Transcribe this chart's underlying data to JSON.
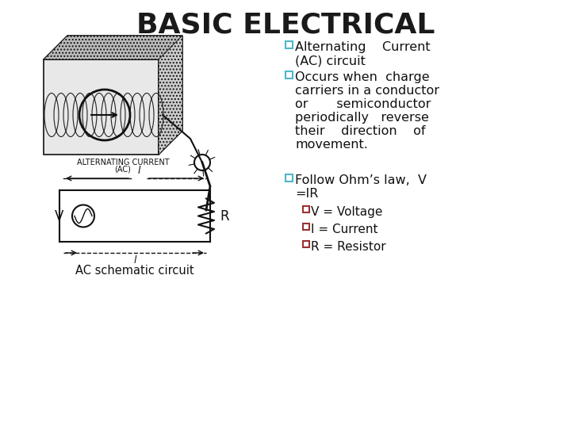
{
  "title": "BASIC ELECTRICAL",
  "title_fontsize": 26,
  "title_fontweight": "bold",
  "title_color": "#1a1a1a",
  "background_color": "#ffffff",
  "box_facecolor": "#ffffff",
  "box_edgecolor": "#888888",
  "bullet_color_main": "#4db8c8",
  "bullet_color_sub": "#8b2020",
  "caption1": "ALTERNATING CURRENT",
  "caption2": "(AC)",
  "caption3": "AC schematic circuit",
  "text_fontsize": 11.5,
  "sub_fontsize": 11
}
